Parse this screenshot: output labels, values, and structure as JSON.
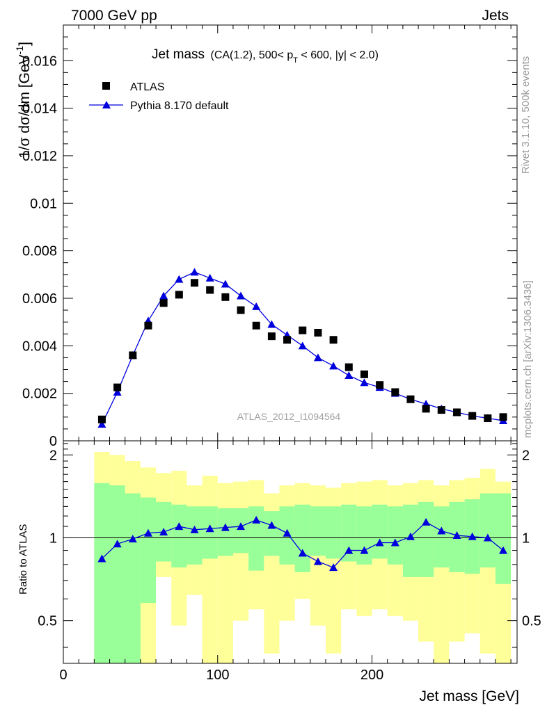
{
  "header": {
    "left": "7000 GeV pp",
    "right": "Jets"
  },
  "side_labels": {
    "rivet": "Rivet 3.1.10,  500k events",
    "mcplots": "mcplots.cern.ch [arXiv:1306.3436]"
  },
  "chart_data": [
    {
      "type": "scatter",
      "title": "Jet mass",
      "subtitle_parts": {
        "pre": "(CA(1.2), 500< p",
        "sub": "T",
        "post": " < 600, |y| < 2.0)"
      },
      "ylabel_parts": {
        "main": "1/σ dσ/dm [GeV",
        "sup": "-1",
        "close": "]"
      },
      "watermark": "ATLAS_2012_I1094564",
      "xlim": [
        0,
        294
      ],
      "ylim": [
        0,
        0.0175
      ],
      "yticks": [
        0,
        0.002,
        0.004,
        0.006,
        0.008,
        0.01,
        0.012,
        0.014,
        0.016
      ],
      "ytick_labels": [
        "0",
        "0.002",
        "0.004",
        "0.006",
        "0.008",
        "0.01",
        "0.012",
        "0.014",
        "0.016"
      ],
      "x": [
        25,
        35,
        45,
        55,
        65,
        75,
        85,
        95,
        105,
        115,
        125,
        135,
        145,
        155,
        165,
        175,
        185,
        195,
        205,
        215,
        225,
        235,
        245,
        255,
        265,
        275,
        285
      ],
      "series": [
        {
          "name": "ATLAS",
          "color": "#000000",
          "marker": "square",
          "values": [
            0.0009,
            0.00225,
            0.0036,
            0.00485,
            0.0058,
            0.00615,
            0.00665,
            0.00635,
            0.00605,
            0.0055,
            0.00485,
            0.0044,
            0.00425,
            0.00465,
            0.00455,
            0.00425,
            0.0031,
            0.0028,
            0.00235,
            0.00205,
            0.00175,
            0.00135,
            0.0013,
            0.0012,
            0.00105,
            0.00095,
            0.001
          ]
        },
        {
          "name": "Pythia 8.170 default",
          "color": "#0000dd",
          "marker": "triangle",
          "values": [
            0.0007,
            0.00205,
            0.0036,
            0.00505,
            0.0061,
            0.0068,
            0.0071,
            0.00685,
            0.0066,
            0.0061,
            0.00565,
            0.0049,
            0.00445,
            0.004,
            0.0035,
            0.00315,
            0.00275,
            0.00245,
            0.00225,
            0.002,
            0.00175,
            0.00155,
            0.00135,
            0.0012,
            0.00105,
            0.00095,
            0.00085
          ]
        }
      ]
    },
    {
      "type": "line",
      "ylabel": "Ratio to ATLAS",
      "xlabel": "Jet mass [GeV]",
      "xlim": [
        0,
        294
      ],
      "ylim": [
        0.35,
        2.25
      ],
      "xticks": [
        0,
        100,
        200
      ],
      "xtick_labels": [
        "0",
        "100",
        "200"
      ],
      "yticks": [
        0.5,
        1,
        2
      ],
      "ytick_labels": [
        "0.5",
        "1",
        "2"
      ],
      "reference_line": 1,
      "band_edges": [
        20,
        30,
        40,
        50,
        60,
        70,
        80,
        90,
        100,
        110,
        120,
        130,
        140,
        150,
        160,
        170,
        180,
        190,
        200,
        210,
        220,
        230,
        240,
        250,
        260,
        270,
        280,
        290
      ],
      "band_outer": {
        "color": "#ffff99",
        "lower": [
          0.35,
          0.35,
          0.35,
          0.35,
          0.72,
          0.48,
          0.62,
          0.35,
          0.35,
          0.5,
          0.55,
          0.38,
          0.5,
          0.6,
          0.48,
          0.38,
          0.55,
          0.52,
          0.55,
          0.52,
          0.5,
          0.42,
          0.35,
          0.42,
          0.45,
          0.38,
          0.35
        ],
        "upper": [
          2.05,
          2.0,
          1.9,
          1.8,
          1.72,
          1.75,
          1.55,
          1.68,
          1.58,
          1.6,
          1.62,
          1.45,
          1.55,
          1.58,
          1.55,
          1.52,
          1.58,
          1.6,
          1.62,
          1.55,
          1.58,
          1.62,
          1.55,
          1.62,
          1.65,
          1.78,
          1.6
        ]
      },
      "band_inner": {
        "color": "#99ff99",
        "lower": [
          0.35,
          0.35,
          0.35,
          0.58,
          0.82,
          0.78,
          0.8,
          0.84,
          0.86,
          0.88,
          0.76,
          0.86,
          0.8,
          0.75,
          0.86,
          0.84,
          0.82,
          0.8,
          0.84,
          0.8,
          0.72,
          0.72,
          0.78,
          0.75,
          0.74,
          0.78,
          0.68
        ],
        "upper": [
          1.58,
          1.55,
          1.45,
          1.4,
          1.35,
          1.32,
          1.3,
          1.3,
          1.28,
          1.28,
          1.3,
          1.25,
          1.3,
          1.32,
          1.3,
          1.3,
          1.32,
          1.3,
          1.32,
          1.3,
          1.32,
          1.35,
          1.3,
          1.35,
          1.38,
          1.45,
          1.45
        ]
      },
      "x": [
        25,
        35,
        45,
        55,
        65,
        75,
        85,
        95,
        105,
        115,
        125,
        135,
        145,
        155,
        165,
        175,
        185,
        195,
        205,
        215,
        225,
        235,
        245,
        255,
        265,
        275,
        285
      ],
      "series": [
        {
          "name": "Pythia 8.170 default",
          "color": "#0000dd",
          "values": [
            0.84,
            0.95,
            0.99,
            1.04,
            1.05,
            1.1,
            1.07,
            1.08,
            1.09,
            1.1,
            1.16,
            1.11,
            1.04,
            0.88,
            0.82,
            0.78,
            0.9,
            0.9,
            0.96,
            0.96,
            1.01,
            1.14,
            1.06,
            1.02,
            1.01,
            1.0,
            0.9
          ]
        }
      ]
    }
  ]
}
